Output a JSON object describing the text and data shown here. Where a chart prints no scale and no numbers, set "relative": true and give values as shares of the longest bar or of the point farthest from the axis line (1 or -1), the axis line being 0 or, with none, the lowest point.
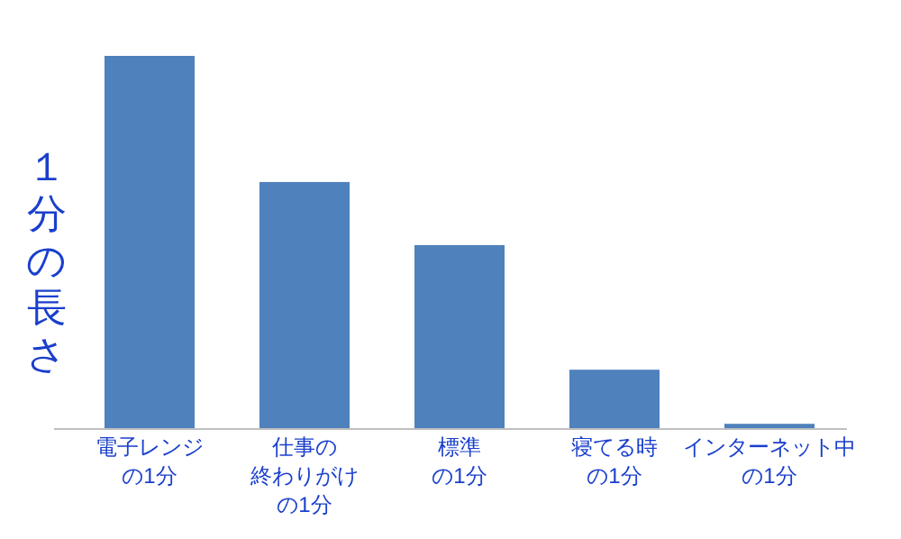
{
  "chart_data": {
    "type": "bar",
    "relative": true,
    "ylabel": "１分の長さ",
    "color": "#4f81bd",
    "categories": [
      "電子レンジの1分",
      "仕事の終わりがけの1分",
      "標準の1分",
      "寝てる時の1分",
      "インターネット中の1分"
    ],
    "values": [
      1,
      0.662,
      0.493,
      0.159,
      0.014
    ]
  }
}
